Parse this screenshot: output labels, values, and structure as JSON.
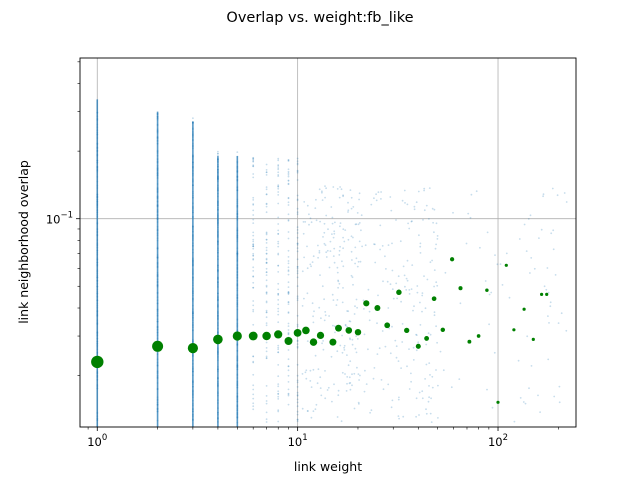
{
  "chart_data": {
    "type": "scatter",
    "title": "Overlap vs. weight:fb_like",
    "xlabel": "link weight",
    "ylabel": "link neighborhood overlap",
    "xscale": "log",
    "yscale": "log",
    "xlim": [
      0.82,
      245
    ],
    "ylim": [
      0.0118,
      0.52
    ],
    "grid": true,
    "x_ticks": [
      {
        "value": 1,
        "base": "10",
        "exp": "0"
      },
      {
        "value": 10,
        "base": "10",
        "exp": "1"
      },
      {
        "value": 100,
        "base": "10",
        "exp": "2"
      }
    ],
    "y_ticks": [
      {
        "value": 0.1,
        "base": "10",
        "exp": "−1"
      }
    ],
    "colors": {
      "raw_points": "#1f77b4",
      "mean_points": "#008000",
      "grid": "#b0b0b0"
    },
    "mean_overlap": {
      "x": [
        1,
        2,
        3,
        4,
        5,
        6,
        7,
        8,
        9,
        10,
        11,
        12,
        13,
        15,
        16,
        18,
        20,
        22,
        25,
        28,
        32,
        35,
        40,
        44,
        48,
        53,
        59,
        65,
        72,
        80,
        88,
        100,
        110,
        120,
        135,
        150,
        165,
        175
      ],
      "y": [
        0.023,
        0.027,
        0.0265,
        0.029,
        0.03,
        0.03,
        0.03,
        0.0305,
        0.0285,
        0.031,
        0.0318,
        0.0282,
        0.0302,
        0.0282,
        0.0325,
        0.0318,
        0.0312,
        0.042,
        0.04,
        0.0335,
        0.047,
        0.0318,
        0.027,
        0.0293,
        0.044,
        0.032,
        0.066,
        0.049,
        0.0283,
        0.03,
        0.048,
        0.0152,
        0.062,
        0.032,
        0.0395,
        0.029,
        0.046,
        0.046
      ]
    }
  }
}
